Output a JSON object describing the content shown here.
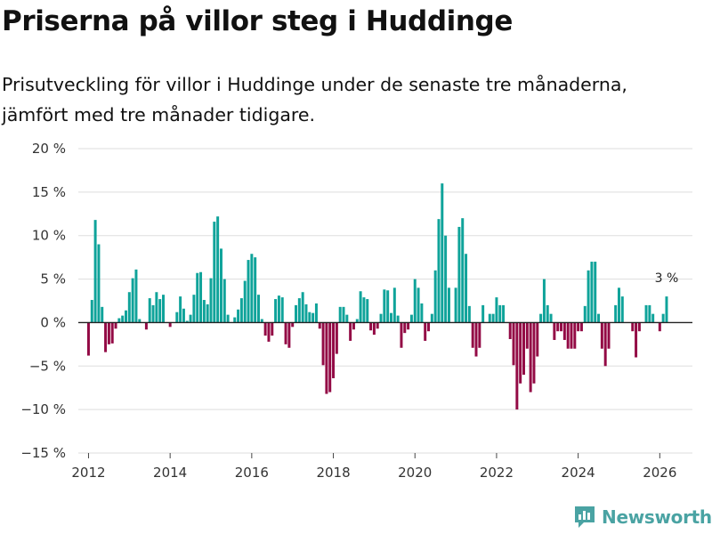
{
  "header": {
    "title": "Priserna på villor steg i Huddinge",
    "subtitle": "Prisutveckling för villor i Huddinge under de senaste tre månaderna, jämfört med tre månader tidigare."
  },
  "brand": {
    "name": "Newsworthy",
    "icon": "bar-chart-logo-icon"
  },
  "colors": {
    "positive": "#0fa39a",
    "negative": "#930a45",
    "grid": "#dddddd",
    "zero_line": "#222222",
    "brand": "#4aa3a3"
  },
  "chart_data": {
    "type": "bar",
    "title": "Priserna på villor steg i Huddinge",
    "xlabel": "",
    "ylabel": "",
    "ylim": [
      -15,
      20
    ],
    "yticks": [
      20,
      15,
      10,
      5,
      0,
      -5,
      -10,
      -15
    ],
    "ytick_labels": [
      "20 %",
      "15 %",
      "10 %",
      "5 %",
      "0 %",
      "−5 %",
      "−10 %",
      "−15 %"
    ],
    "xlim": [
      2011.75,
      2026.8
    ],
    "xticks": [
      2012,
      2014,
      2016,
      2018,
      2020,
      2022,
      2024,
      2026
    ],
    "xtick_labels": [
      "2012",
      "2014",
      "2016",
      "2018",
      "2020",
      "2022",
      "2024",
      "2026"
    ],
    "frequency": "monthly",
    "start_year": 2012,
    "start_month": 1,
    "values": [
      -3.8,
      2.6,
      11.8,
      9.0,
      1.8,
      -3.4,
      -2.5,
      -2.4,
      -0.7,
      0.5,
      0.8,
      1.4,
      3.5,
      5.1,
      6.1,
      0.4,
      0,
      -0.8,
      2.8,
      2.0,
      3.5,
      2.7,
      3.2,
      0,
      -0.5,
      0,
      1.2,
      3.0,
      1.6,
      0.2,
      0.9,
      3.2,
      5.7,
      5.8,
      2.6,
      2.1,
      5.1,
      11.6,
      12.2,
      8.5,
      5.0,
      0.9,
      0,
      0.6,
      1.5,
      2.8,
      4.8,
      7.2,
      7.9,
      7.5,
      3.2,
      0.4,
      -1.5,
      -2.2,
      -1.5,
      2.7,
      3.1,
      2.9,
      -2.5,
      -2.9,
      -0.5,
      2.0,
      2.8,
      3.5,
      2.1,
      1.2,
      1.1,
      2.2,
      -0.7,
      -4.9,
      -8.2,
      -8.0,
      -6.4,
      -3.6,
      1.8,
      1.8,
      0.9,
      -2.1,
      -0.8,
      0.4,
      3.6,
      2.9,
      2.7,
      -0.9,
      -1.4,
      -0.7,
      1.0,
      3.8,
      3.7,
      1.1,
      4.0,
      0.8,
      -2.9,
      -1.2,
      -0.8,
      0.9,
      5.0,
      4.0,
      2.2,
      -2.1,
      -1.0,
      1.0,
      6.0,
      11.9,
      16.0,
      10.0,
      4.0,
      0,
      4.0,
      11.0,
      12.0,
      7.9,
      1.9,
      -2.9,
      -3.9,
      -2.9,
      2.0,
      0,
      1.0,
      1.0,
      2.9,
      2.0,
      2.0,
      0,
      -1.9,
      -4.9,
      -10.0,
      -7.0,
      -6.0,
      -3.0,
      -8.0,
      -7.0,
      -3.9,
      1.0,
      5.0,
      2.0,
      1.0,
      -2.0,
      -1.0,
      -1.0,
      -2.0,
      -3.0,
      -3.0,
      -3.0,
      -1.0,
      -1.0,
      1.9,
      6.0,
      7.0,
      7.0,
      1.0,
      -3.0,
      -5.0,
      -3.0,
      0,
      2.0,
      4.0,
      3.0,
      0,
      0,
      -1.0,
      -4.0,
      -1.0,
      0,
      2.0,
      2.0,
      1.0,
      0,
      -1.0,
      1.0,
      3.0
    ],
    "annotation": {
      "label": "3 %",
      "target": "last"
    }
  }
}
